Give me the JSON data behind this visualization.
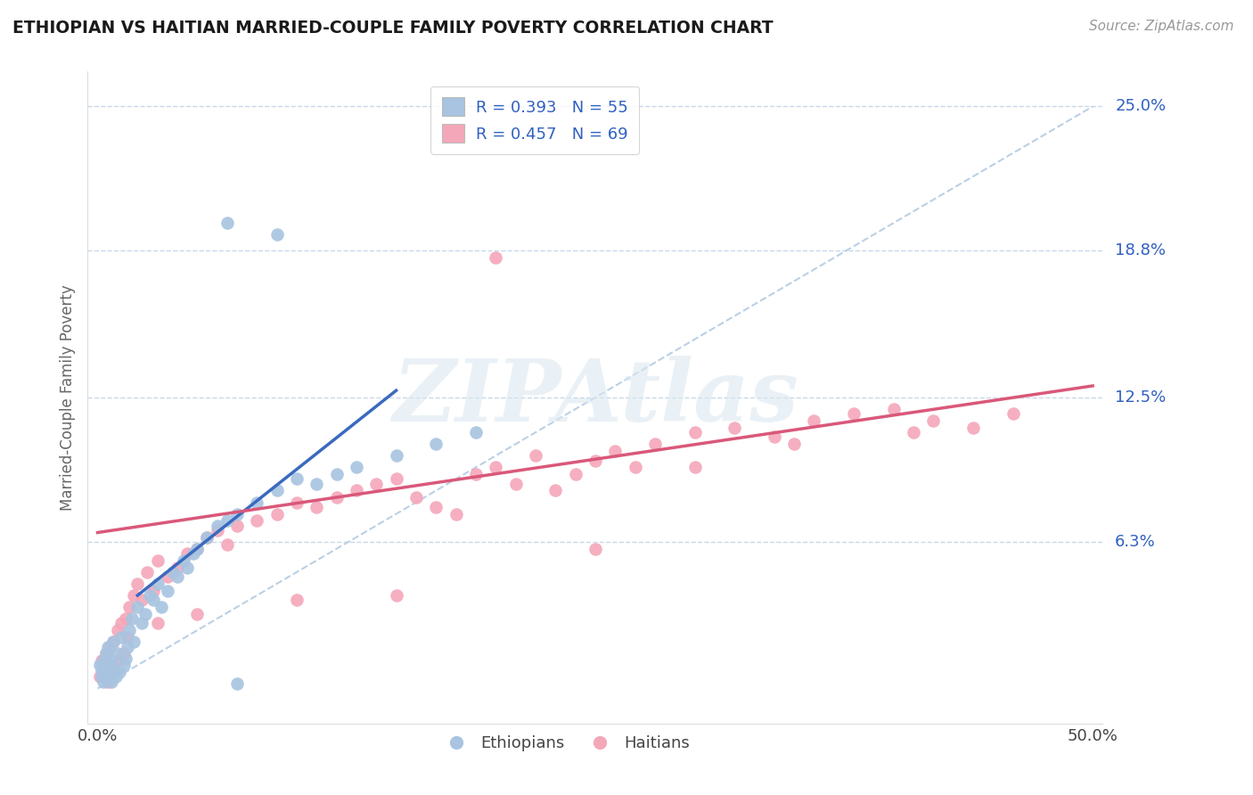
{
  "title": "ETHIOPIAN VS HAITIAN MARRIED-COUPLE FAMILY POVERTY CORRELATION CHART",
  "source": "Source: ZipAtlas.com",
  "ylabel": "Married-Couple Family Poverty",
  "xlim": [
    -0.005,
    0.505
  ],
  "ylim": [
    -0.015,
    0.265
  ],
  "xticks": [
    0.0,
    0.5
  ],
  "xtick_labels": [
    "0.0%",
    "50.0%"
  ],
  "ytick_labels_right": [
    {
      "val": 0.25,
      "label": "25.0%"
    },
    {
      "val": 0.188,
      "label": "18.8%"
    },
    {
      "val": 0.125,
      "label": "12.5%"
    },
    {
      "val": 0.063,
      "label": "6.3%"
    }
  ],
  "ethiopian_color": "#a8c4e0",
  "haitian_color": "#f4a7b9",
  "trend_ethiopian_color": "#3a6abf",
  "trend_haitian_color": "#d9587a",
  "ref_line_color": "#b0c8e0",
  "grid_color": "#c8d8e8",
  "text_color": "#3060c0",
  "title_color": "#1a1a1a",
  "watermark": "ZIPAtlas",
  "ethiopians_label": "Ethiopians",
  "haitians_label": "Haitians",
  "ethiopian_R": 0.393,
  "ethiopian_N": 55,
  "haitian_R": 0.457,
  "haitian_N": 69,
  "eth_trend": [
    0.02,
    0.04,
    0.15,
    0.128
  ],
  "hai_trend": [
    0.0,
    0.067,
    0.5,
    0.13
  ],
  "eth_x": [
    0.001,
    0.002,
    0.002,
    0.003,
    0.003,
    0.004,
    0.004,
    0.005,
    0.005,
    0.006,
    0.006,
    0.007,
    0.007,
    0.008,
    0.008,
    0.009,
    0.01,
    0.011,
    0.012,
    0.013,
    0.014,
    0.015,
    0.016,
    0.017,
    0.018,
    0.02,
    0.022,
    0.024,
    0.026,
    0.028,
    0.03,
    0.032,
    0.035,
    0.038,
    0.04,
    0.043,
    0.045,
    0.048,
    0.05,
    0.055,
    0.06,
    0.065,
    0.07,
    0.08,
    0.09,
    0.1,
    0.11,
    0.12,
    0.13,
    0.15,
    0.17,
    0.19,
    0.065,
    0.09,
    0.07
  ],
  "eth_y": [
    0.01,
    0.005,
    0.008,
    0.012,
    0.003,
    0.007,
    0.015,
    0.004,
    0.018,
    0.006,
    0.01,
    0.003,
    0.012,
    0.008,
    0.02,
    0.005,
    0.015,
    0.007,
    0.022,
    0.01,
    0.013,
    0.018,
    0.025,
    0.03,
    0.02,
    0.035,
    0.028,
    0.032,
    0.04,
    0.038,
    0.045,
    0.035,
    0.042,
    0.05,
    0.048,
    0.055,
    0.052,
    0.058,
    0.06,
    0.065,
    0.07,
    0.072,
    0.075,
    0.08,
    0.085,
    0.09,
    0.088,
    0.092,
    0.095,
    0.1,
    0.105,
    0.11,
    0.2,
    0.195,
    0.002
  ],
  "hai_x": [
    0.001,
    0.002,
    0.003,
    0.004,
    0.005,
    0.006,
    0.007,
    0.008,
    0.009,
    0.01,
    0.011,
    0.012,
    0.013,
    0.014,
    0.015,
    0.016,
    0.018,
    0.02,
    0.022,
    0.025,
    0.028,
    0.03,
    0.035,
    0.04,
    0.045,
    0.05,
    0.055,
    0.06,
    0.065,
    0.07,
    0.08,
    0.09,
    0.1,
    0.11,
    0.12,
    0.13,
    0.14,
    0.15,
    0.16,
    0.17,
    0.18,
    0.19,
    0.2,
    0.21,
    0.22,
    0.23,
    0.24,
    0.25,
    0.26,
    0.27,
    0.28,
    0.3,
    0.32,
    0.34,
    0.36,
    0.38,
    0.4,
    0.42,
    0.44,
    0.46,
    0.35,
    0.41,
    0.3,
    0.25,
    0.2,
    0.15,
    0.1,
    0.05,
    0.03
  ],
  "hai_y": [
    0.005,
    0.012,
    0.008,
    0.015,
    0.003,
    0.018,
    0.01,
    0.02,
    0.007,
    0.025,
    0.012,
    0.028,
    0.015,
    0.03,
    0.022,
    0.035,
    0.04,
    0.045,
    0.038,
    0.05,
    0.042,
    0.055,
    0.048,
    0.052,
    0.058,
    0.06,
    0.065,
    0.068,
    0.062,
    0.07,
    0.072,
    0.075,
    0.08,
    0.078,
    0.082,
    0.085,
    0.088,
    0.09,
    0.082,
    0.078,
    0.075,
    0.092,
    0.095,
    0.088,
    0.1,
    0.085,
    0.092,
    0.098,
    0.102,
    0.095,
    0.105,
    0.11,
    0.112,
    0.108,
    0.115,
    0.118,
    0.12,
    0.115,
    0.112,
    0.118,
    0.105,
    0.11,
    0.095,
    0.06,
    0.185,
    0.04,
    0.038,
    0.032,
    0.028
  ]
}
